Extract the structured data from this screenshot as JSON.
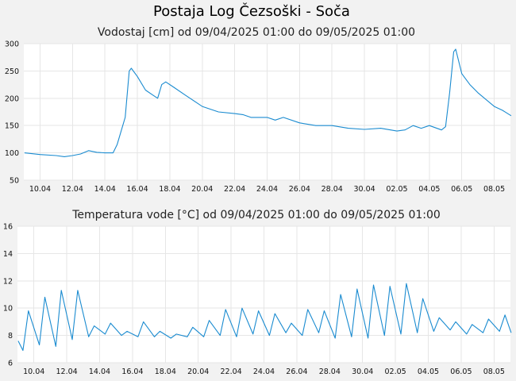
{
  "title": "Postaja Log Čezsoški - Soča",
  "colors": {
    "series": "#1a8bd0",
    "background": "#f2f2f2",
    "plot": "#ffffff",
    "grid": "#e6e6e6"
  },
  "chart_data": [
    {
      "type": "line",
      "title": "Vodostaj [cm] od 09/04/2025 01:00 do 09/05/2025 01:00",
      "x_range": [
        "2025-04-09",
        "2025-05-09"
      ],
      "ylim": [
        50,
        300
      ],
      "yticks": [
        300,
        250,
        200,
        150,
        100,
        50
      ],
      "xtick_dates": [
        "2025-04-10",
        "2025-04-12",
        "2025-04-14",
        "2025-04-16",
        "2025-04-18",
        "2025-04-20",
        "2025-04-22",
        "2025-04-24",
        "2025-04-26",
        "2025-04-28",
        "2025-04-30",
        "2025-05-02",
        "2025-05-04",
        "2025-05-06",
        "2025-05-08"
      ],
      "xtick_labels": [
        "10.04",
        "12.04",
        "14.04",
        "16.04",
        "18.04",
        "20.04",
        "22.04",
        "24.04",
        "26.04",
        "28.04",
        "30.04",
        "02.05",
        "04.05",
        "06.05",
        "08.05"
      ],
      "grid": true,
      "series": [
        {
          "points": [
            [
              "2025-04-09 01:00",
              100
            ],
            [
              "2025-04-10 00:00",
              97
            ],
            [
              "2025-04-11 00:00",
              95
            ],
            [
              "2025-04-11 12:00",
              93
            ],
            [
              "2025-04-12 00:00",
              95
            ],
            [
              "2025-04-12 12:00",
              98
            ],
            [
              "2025-04-13 00:00",
              104
            ],
            [
              "2025-04-13 12:00",
              101
            ],
            [
              "2025-04-14 00:00",
              100
            ],
            [
              "2025-04-14 12:00",
              100
            ],
            [
              "2025-04-14 18:00",
              115
            ],
            [
              "2025-04-15 06:00",
              165
            ],
            [
              "2025-04-15 12:00",
              250
            ],
            [
              "2025-04-15 15:00",
              255
            ],
            [
              "2025-04-16 00:00",
              240
            ],
            [
              "2025-04-16 12:00",
              215
            ],
            [
              "2025-04-17 00:00",
              205
            ],
            [
              "2025-04-17 06:00",
              200
            ],
            [
              "2025-04-17 12:00",
              225
            ],
            [
              "2025-04-17 18:00",
              230
            ],
            [
              "2025-04-18 06:00",
              220
            ],
            [
              "2025-04-19 00:00",
              205
            ],
            [
              "2025-04-20 00:00",
              185
            ],
            [
              "2025-04-21 00:00",
              175
            ],
            [
              "2025-04-22 00:00",
              172
            ],
            [
              "2025-04-22 12:00",
              170
            ],
            [
              "2025-04-23 00:00",
              165
            ],
            [
              "2025-04-24 00:00",
              165
            ],
            [
              "2025-04-24 12:00",
              160
            ],
            [
              "2025-04-25 00:00",
              165
            ],
            [
              "2025-04-26 00:00",
              155
            ],
            [
              "2025-04-27 00:00",
              150
            ],
            [
              "2025-04-28 00:00",
              150
            ],
            [
              "2025-04-29 00:00",
              145
            ],
            [
              "2025-04-30 00:00",
              143
            ],
            [
              "2025-05-01 00:00",
              145
            ],
            [
              "2025-05-02 00:00",
              140
            ],
            [
              "2025-05-02 12:00",
              142
            ],
            [
              "2025-05-03 00:00",
              150
            ],
            [
              "2025-05-03 12:00",
              145
            ],
            [
              "2025-05-04 00:00",
              150
            ],
            [
              "2025-05-04 18:00",
              142
            ],
            [
              "2025-05-05 00:00",
              148
            ],
            [
              "2025-05-05 06:00",
              210
            ],
            [
              "2025-05-05 12:00",
              285
            ],
            [
              "2025-05-05 15:00",
              290
            ],
            [
              "2025-05-06 00:00",
              245
            ],
            [
              "2025-05-06 12:00",
              225
            ],
            [
              "2025-05-07 00:00",
              210
            ],
            [
              "2025-05-08 00:00",
              185
            ],
            [
              "2025-05-08 12:00",
              178
            ],
            [
              "2025-05-09 01:00",
              168
            ]
          ]
        }
      ]
    },
    {
      "type": "line",
      "title": "Temperatura vode [°C] od 09/04/2025 01:00 do 09/05/2025 01:00",
      "x_range": [
        "2025-04-09",
        "2025-05-09"
      ],
      "ylim": [
        6,
        16
      ],
      "yticks": [
        16,
        14,
        12,
        10,
        8,
        6
      ],
      "xtick_dates": [
        "2025-04-10",
        "2025-04-12",
        "2025-04-14",
        "2025-04-16",
        "2025-04-18",
        "2025-04-20",
        "2025-04-22",
        "2025-04-24",
        "2025-04-26",
        "2025-04-28",
        "2025-04-30",
        "2025-05-02",
        "2025-05-04",
        "2025-05-06",
        "2025-05-08"
      ],
      "xtick_labels": [
        "10.04",
        "12.04",
        "14.04",
        "16.04",
        "18.04",
        "20.04",
        "22.04",
        "24.04",
        "26.04",
        "28.04",
        "30.04",
        "02.05",
        "04.05",
        "06.05",
        "08.05"
      ],
      "grid": true,
      "series": [
        {
          "points": [
            [
              "2025-04-09 01:00",
              7.6
            ],
            [
              "2025-04-09 08:00",
              6.9
            ],
            [
              "2025-04-09 16:00",
              9.8
            ],
            [
              "2025-04-10 08:00",
              7.3
            ],
            [
              "2025-04-10 16:00",
              10.8
            ],
            [
              "2025-04-11 08:00",
              7.2
            ],
            [
              "2025-04-11 16:00",
              11.3
            ],
            [
              "2025-04-12 08:00",
              7.7
            ],
            [
              "2025-04-12 16:00",
              11.3
            ],
            [
              "2025-04-13 08:00",
              7.9
            ],
            [
              "2025-04-13 16:00",
              8.7
            ],
            [
              "2025-04-14 08:00",
              8.1
            ],
            [
              "2025-04-14 16:00",
              8.9
            ],
            [
              "2025-04-15 08:00",
              8.0
            ],
            [
              "2025-04-15 16:00",
              8.3
            ],
            [
              "2025-04-16 08:00",
              7.9
            ],
            [
              "2025-04-16 16:00",
              9.0
            ],
            [
              "2025-04-17 08:00",
              7.9
            ],
            [
              "2025-04-17 16:00",
              8.3
            ],
            [
              "2025-04-18 08:00",
              7.8
            ],
            [
              "2025-04-18 16:00",
              8.1
            ],
            [
              "2025-04-19 08:00",
              7.9
            ],
            [
              "2025-04-19 16:00",
              8.6
            ],
            [
              "2025-04-20 08:00",
              7.9
            ],
            [
              "2025-04-20 16:00",
              9.1
            ],
            [
              "2025-04-21 08:00",
              8.0
            ],
            [
              "2025-04-21 16:00",
              9.9
            ],
            [
              "2025-04-22 08:00",
              7.9
            ],
            [
              "2025-04-22 16:00",
              10.0
            ],
            [
              "2025-04-23 08:00",
              8.1
            ],
            [
              "2025-04-23 16:00",
              9.8
            ],
            [
              "2025-04-24 08:00",
              8.0
            ],
            [
              "2025-04-24 16:00",
              9.6
            ],
            [
              "2025-04-25 08:00",
              8.2
            ],
            [
              "2025-04-25 16:00",
              8.9
            ],
            [
              "2025-04-26 08:00",
              8.0
            ],
            [
              "2025-04-26 16:00",
              9.9
            ],
            [
              "2025-04-27 08:00",
              8.2
            ],
            [
              "2025-04-27 16:00",
              9.8
            ],
            [
              "2025-04-28 08:00",
              7.8
            ],
            [
              "2025-04-28 16:00",
              11.0
            ],
            [
              "2025-04-29 08:00",
              7.9
            ],
            [
              "2025-04-29 16:00",
              11.4
            ],
            [
              "2025-04-30 08:00",
              7.8
            ],
            [
              "2025-04-30 16:00",
              11.7
            ],
            [
              "2025-05-01 08:00",
              8.0
            ],
            [
              "2025-05-01 16:00",
              11.6
            ],
            [
              "2025-05-02 08:00",
              8.1
            ],
            [
              "2025-05-02 16:00",
              11.8
            ],
            [
              "2025-05-03 08:00",
              8.2
            ],
            [
              "2025-05-03 16:00",
              10.7
            ],
            [
              "2025-05-04 08:00",
              8.3
            ],
            [
              "2025-05-04 16:00",
              9.3
            ],
            [
              "2025-05-05 08:00",
              8.4
            ],
            [
              "2025-05-05 16:00",
              9.0
            ],
            [
              "2025-05-06 08:00",
              8.1
            ],
            [
              "2025-05-06 16:00",
              8.8
            ],
            [
              "2025-05-07 08:00",
              8.2
            ],
            [
              "2025-05-07 16:00",
              9.2
            ],
            [
              "2025-05-08 08:00",
              8.3
            ],
            [
              "2025-05-08 16:00",
              9.5
            ],
            [
              "2025-05-09 01:00",
              8.2
            ]
          ]
        }
      ]
    }
  ]
}
